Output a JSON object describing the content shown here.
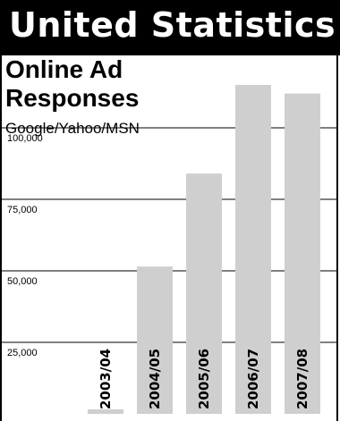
{
  "header": {
    "title": "United Statistics"
  },
  "chart_data": {
    "type": "bar",
    "title": "Online Ad Responses",
    "subtitle": "Google/Yahoo/MSN",
    "xlabel": "",
    "ylabel": "",
    "categories": [
      "2003/04",
      "2004/05",
      "2005/06",
      "2006/07",
      "2007/08"
    ],
    "values": [
      1600,
      51500,
      84000,
      115000,
      112000
    ],
    "yticks": [
      100000,
      75000,
      50000,
      25000
    ],
    "ytick_labels": [
      "100,000",
      "75,000",
      "50,000",
      "25,000"
    ],
    "ylim": [
      0,
      115000
    ],
    "grid": true,
    "colors": {
      "bar": "#cfcfcf",
      "grid": "#000000",
      "header_bg": "#000000",
      "header_text": "#ffffff"
    }
  }
}
